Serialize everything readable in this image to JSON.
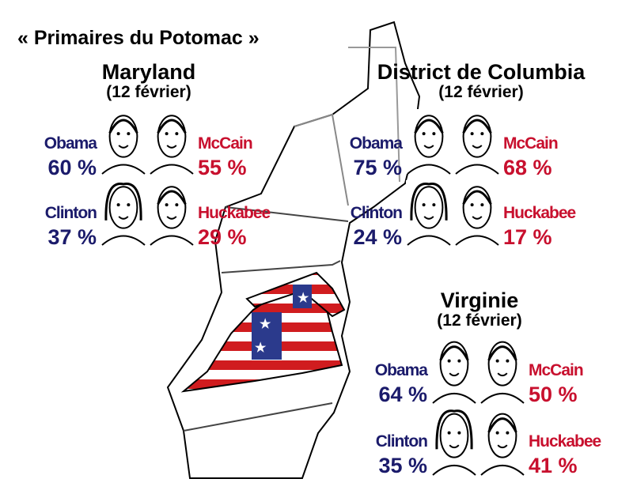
{
  "title": "« Primaires du Potomac »",
  "regions": [
    {
      "name": "Maryland",
      "date": "(12 février)",
      "candidates": [
        {
          "name": "Obama",
          "result": "60 %"
        },
        {
          "name": "McCain",
          "result": "55 %"
        },
        {
          "name": "Clinton",
          "result": "37 %"
        },
        {
          "name": "Huckabee",
          "result": "29 %"
        }
      ]
    },
    {
      "name": "District de Columbia",
      "date": "(12 février)",
      "candidates": [
        {
          "name": "Obama",
          "result": "75 %"
        },
        {
          "name": "McCain",
          "result": "68 %"
        },
        {
          "name": "Clinton",
          "result": "24 %"
        },
        {
          "name": "Huckabee",
          "result": "17 %"
        }
      ]
    },
    {
      "name": "Virginie",
      "date": "(12 février)",
      "candidates": [
        {
          "name": "Obama",
          "result": "64 %"
        },
        {
          "name": "McCain",
          "result": "50 %"
        },
        {
          "name": "Clinton",
          "result": "35 %"
        },
        {
          "name": "Huckabee",
          "result": "41 %"
        }
      ]
    }
  ]
}
